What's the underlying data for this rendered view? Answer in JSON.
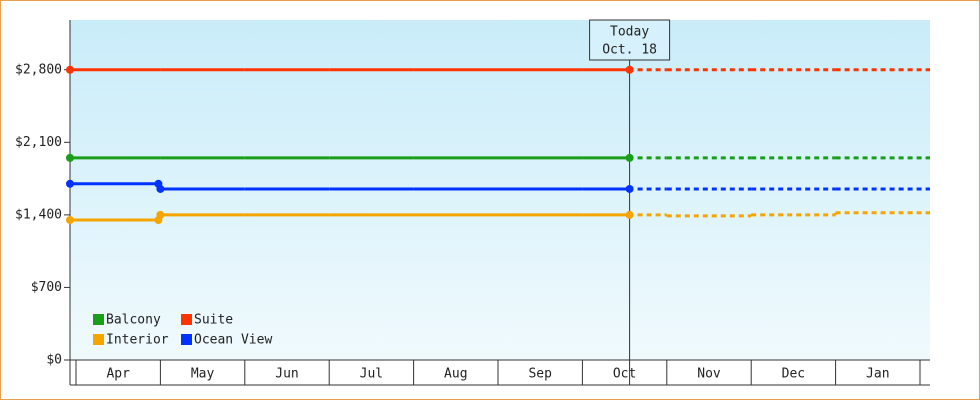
{
  "chart_data": {
    "type": "step-line",
    "categories": [
      "Apr",
      "May",
      "Jun",
      "Jul",
      "Aug",
      "Sep",
      "Oct",
      "Nov",
      "Dec",
      "Jan"
    ],
    "today": {
      "lines": [
        "Today",
        "Oct. 18"
      ],
      "category": "Oct"
    },
    "ylim": [
      0,
      3280
    ],
    "yticks": [
      {
        "value": 0,
        "label": "$0"
      },
      {
        "value": 700,
        "label": "$700"
      },
      {
        "value": 1400,
        "label": "$1,400"
      },
      {
        "value": 2100,
        "label": "$2,100"
      },
      {
        "value": 2800,
        "label": "$2,800"
      }
    ],
    "series": [
      {
        "name": "Balcony",
        "color": "#1a9e1a",
        "values": [
          1950,
          1950,
          1950,
          1950,
          1950,
          1950,
          1950,
          1950,
          1950,
          1950
        ]
      },
      {
        "name": "Suite",
        "color": "#ff3300",
        "values": [
          2800,
          2800,
          2800,
          2800,
          2800,
          2800,
          2800,
          2800,
          2800,
          2800
        ]
      },
      {
        "name": "Interior",
        "color": "#f5a500",
        "values": [
          1350,
          1400,
          1400,
          1400,
          1400,
          1400,
          1400,
          1390,
          1400,
          1420
        ]
      },
      {
        "name": "Ocean View",
        "color": "#0033ff",
        "values": [
          1700,
          1650,
          1650,
          1650,
          1650,
          1650,
          1650,
          1650,
          1650,
          1650
        ]
      }
    ]
  }
}
